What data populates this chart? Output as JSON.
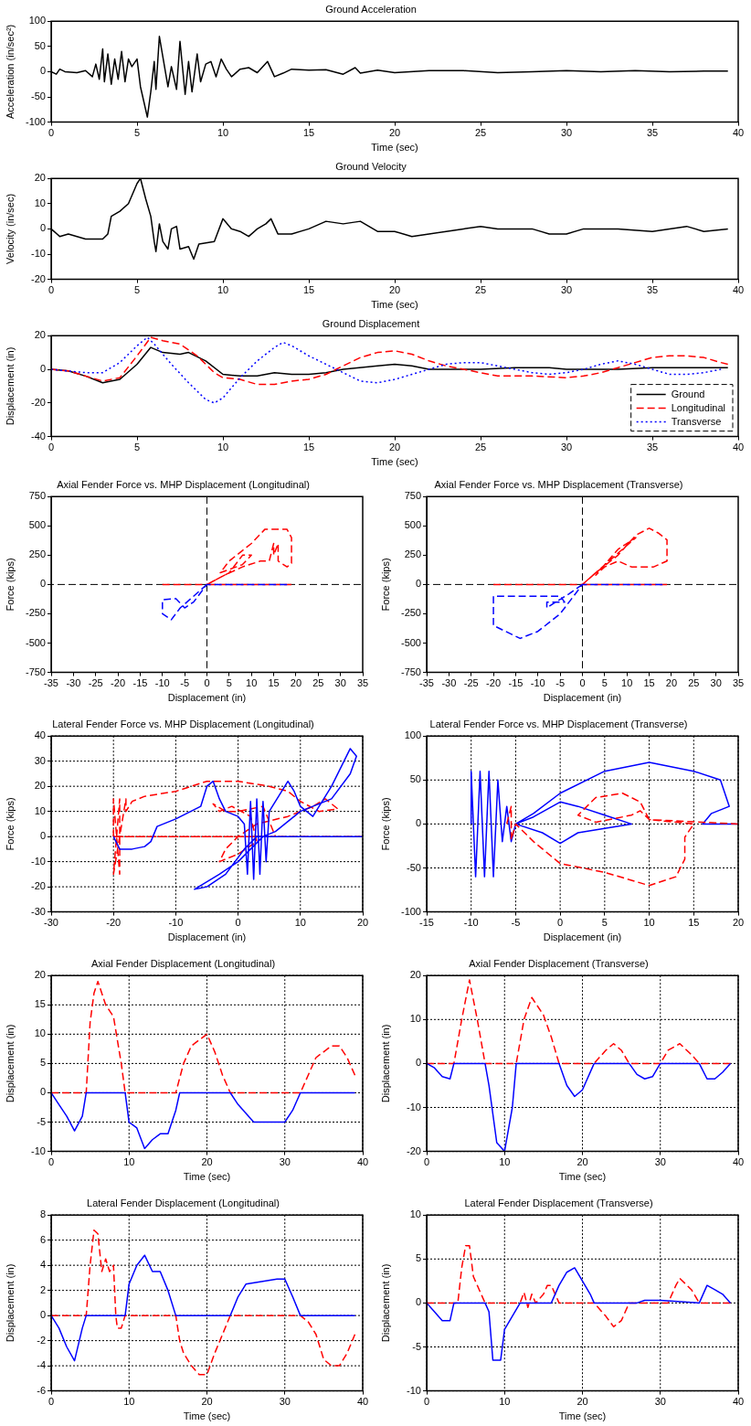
{
  "chart_data": [
    {
      "type": "line",
      "title": "Ground Acceleration",
      "xlabel": "Time (sec)",
      "ylabel": "Acceleration (in/sec²)",
      "xlim": [
        0,
        40
      ],
      "xticks": [
        0,
        5,
        10,
        15,
        20,
        25,
        30,
        35,
        40
      ],
      "ylim": [
        -100,
        100
      ],
      "yticks": [
        -100,
        -50,
        0,
        50,
        100
      ],
      "grid": false,
      "x": [
        0,
        0.3,
        0.5,
        0.8,
        1.5,
        2,
        2.4,
        2.6,
        2.8,
        3.0,
        3.1,
        3.3,
        3.5,
        3.7,
        3.9,
        4.1,
        4.3,
        4.5,
        4.7,
        5.0,
        5.2,
        5.4,
        5.6,
        5.8,
        6.0,
        6.1,
        6.3,
        6.5,
        6.8,
        7.0,
        7.3,
        7.5,
        7.8,
        8.0,
        8.2,
        8.5,
        8.7,
        9.0,
        9.3,
        9.6,
        9.9,
        10.2,
        10.5,
        11,
        11.5,
        12,
        12.6,
        13,
        13.5,
        14,
        15,
        16,
        17,
        17.7,
        18,
        19,
        20,
        22,
        24,
        26,
        28,
        30,
        32,
        34,
        36,
        38,
        39.4
      ],
      "series": [
        {
          "color": "#000000",
          "values": [
            0,
            -5,
            5,
            0,
            -2,
            2,
            -10,
            15,
            -15,
            45,
            -20,
            35,
            -25,
            25,
            -15,
            40,
            -20,
            25,
            10,
            25,
            -30,
            -60,
            -90,
            -40,
            20,
            -35,
            70,
            30,
            -30,
            10,
            -35,
            60,
            -45,
            20,
            -40,
            35,
            -20,
            15,
            20,
            -10,
            25,
            5,
            -10,
            5,
            8,
            -2,
            20,
            -10,
            -3,
            5,
            3,
            4,
            -5,
            8,
            -3,
            3,
            -2,
            2,
            2,
            -2,
            0,
            2,
            0,
            2,
            0,
            1,
            1
          ]
        }
      ]
    },
    {
      "type": "line",
      "title": "Ground Velocity",
      "xlabel": "Time (sec)",
      "ylabel": "Velocity (in/sec)",
      "xlim": [
        0,
        40
      ],
      "xticks": [
        0,
        5,
        10,
        15,
        20,
        25,
        30,
        35,
        40
      ],
      "ylim": [
        -20,
        20
      ],
      "yticks": [
        -20,
        -10,
        0,
        10,
        20
      ],
      "grid": false,
      "x": [
        0,
        0.5,
        1,
        2,
        3,
        3.3,
        3.5,
        4,
        4.5,
        5,
        5.2,
        5.5,
        5.8,
        6,
        6.1,
        6.3,
        6.5,
        6.8,
        7,
        7.3,
        7.5,
        8,
        8.3,
        8.6,
        9.5,
        10,
        10.5,
        11,
        11.5,
        12,
        12.5,
        12.8,
        13.2,
        14,
        15,
        16,
        17,
        18,
        19,
        20,
        21,
        22,
        23,
        24,
        25,
        26,
        28,
        29,
        30,
        31,
        33,
        35,
        36,
        37,
        38,
        39.4
      ],
      "series": [
        {
          "color": "#000000",
          "values": [
            0,
            -3,
            -2,
            -4,
            -4,
            -2,
            5,
            7,
            10,
            18,
            20,
            12,
            5,
            -5,
            -9,
            2,
            -5,
            -8,
            0,
            1,
            -8,
            -7,
            -12,
            -6,
            -5,
            4,
            0,
            -1,
            -3,
            0,
            2,
            4,
            -2,
            -2,
            0,
            3,
            2,
            3,
            -1,
            -1,
            -3,
            -2,
            -1,
            0,
            1,
            0,
            0,
            -2,
            -2,
            0,
            0,
            -1,
            0,
            1,
            -1,
            0
          ]
        }
      ]
    },
    {
      "type": "line",
      "title": "Ground Displacement",
      "xlabel": "Time (sec)",
      "ylabel": "Displacement (in)",
      "xlim": [
        0,
        40
      ],
      "xticks": [
        0,
        5,
        10,
        15,
        20,
        25,
        30,
        35,
        40
      ],
      "ylim": [
        -40,
        20
      ],
      "yticks": [
        -40,
        -20,
        0,
        20
      ],
      "grid": false,
      "legend": "bottom right",
      "series": [
        {
          "name": "Ground",
          "color": "#000000",
          "line_style": "solid",
          "x": [
            0,
            1,
            2,
            3,
            4,
            5,
            5.8,
            6.5,
            7.5,
            8,
            9,
            10,
            11,
            12,
            13,
            14,
            15,
            16,
            17,
            19,
            20,
            21,
            22,
            25,
            27,
            29,
            30,
            33,
            35,
            39.4
          ],
          "values": [
            0,
            -1,
            -4,
            -8,
            -6,
            3,
            13,
            10,
            9,
            10,
            5,
            -3,
            -4,
            -4,
            -2,
            -3,
            -3,
            -2,
            0,
            2,
            3,
            2,
            0,
            0,
            1,
            1,
            0,
            0,
            1,
            1
          ]
        },
        {
          "name": "Longitudinal",
          "color": "#ff0000",
          "line_style": "dashed",
          "x": [
            0,
            1,
            2,
            3,
            4,
            5,
            5.8,
            6.5,
            7.5,
            8.5,
            9.5,
            10,
            11,
            12,
            13,
            14,
            15,
            16,
            17,
            18,
            19,
            20,
            21,
            22,
            23,
            25,
            26,
            28,
            30,
            31,
            32,
            33,
            34,
            35,
            36,
            37,
            38,
            39,
            39.4
          ],
          "values": [
            0,
            -1,
            -4,
            -7,
            -5,
            8,
            19,
            17,
            15,
            8,
            -2,
            -5,
            -6,
            -9,
            -9,
            -7,
            -6,
            -3,
            2,
            7,
            10,
            11,
            9,
            5,
            2,
            -2,
            -4,
            -4,
            -5,
            -4,
            -2,
            1,
            4,
            7,
            8,
            8,
            7,
            4,
            3
          ]
        },
        {
          "name": "Transverse",
          "color": "#0000ff",
          "line_style": "dotted",
          "x": [
            0,
            1,
            2,
            3,
            4,
            5,
            5.6,
            6,
            7,
            8,
            9,
            9.5,
            10,
            11,
            12,
            13,
            13.5,
            14,
            15,
            16,
            17,
            18,
            19,
            20,
            21,
            22,
            23,
            24,
            25,
            26,
            27,
            28,
            29,
            30,
            31,
            32,
            33,
            34,
            35,
            36,
            37,
            38,
            39
          ],
          "values": [
            0,
            -1,
            -2,
            -2,
            4,
            14,
            19,
            15,
            3,
            -8,
            -18,
            -20,
            -17,
            -5,
            5,
            13,
            16,
            14,
            8,
            3,
            -2,
            -7,
            -8,
            -6,
            -3,
            0,
            3,
            4,
            4,
            2,
            0,
            -2,
            -3,
            -2,
            0,
            3,
            5,
            3,
            0,
            -3,
            -3,
            -2,
            0
          ]
        }
      ]
    },
    {
      "type": "line",
      "title": "Axial Fender Force vs. MHP Displacement (Longitudinal)",
      "xlabel": "Displacement (in)",
      "ylabel": "Force (kips)",
      "xlim": [
        -35,
        35
      ],
      "xticks": [
        -35,
        -30,
        -25,
        -20,
        -15,
        -10,
        -5,
        0,
        5,
        10,
        15,
        20,
        25,
        30,
        35
      ],
      "ylim": [
        -750,
        750
      ],
      "yticks": [
        -750,
        -500,
        -250,
        0,
        250,
        500,
        750
      ],
      "grid": false,
      "ref_lines": [
        {
          "axis": "x",
          "value": 0,
          "color": "#000000",
          "line_style": "dashed"
        },
        {
          "axis": "y",
          "value": 0,
          "color": "#000000",
          "line_style": "dashed"
        }
      ],
      "series": [
        {
          "color": "#ff0000",
          "line_style": "dashed",
          "x": [
            -10,
            0,
            5,
            8,
            10,
            8,
            3,
            5,
            10,
            13,
            18,
            19,
            19,
            18,
            16,
            16,
            15,
            15,
            14,
            12,
            8,
            4,
            0,
            19
          ],
          "values": [
            0,
            0,
            100,
            250,
            250,
            170,
            100,
            200,
            350,
            470,
            470,
            400,
            180,
            150,
            200,
            350,
            250,
            350,
            200,
            200,
            150,
            80,
            0,
            0
          ]
        },
        {
          "color": "#0000ff",
          "line_style": "dashed",
          "x": [
            0,
            -3,
            -6,
            -8,
            -10,
            -10,
            -7,
            -5,
            -3,
            -1,
            0,
            18
          ],
          "values": [
            0,
            -100,
            -200,
            -300,
            -250,
            -130,
            -120,
            -200,
            -150,
            -50,
            0,
            0
          ]
        }
      ]
    },
    {
      "type": "line",
      "title": "Axial Fender Force vs. MHP Displacement (Transverse)",
      "xlabel": "Displacement (in)",
      "ylabel": "Force (kips)",
      "xlim": [
        -35,
        35
      ],
      "xticks": [
        -35,
        -30,
        -25,
        -20,
        -15,
        -10,
        -5,
        0,
        5,
        10,
        15,
        20,
        25,
        30,
        35
      ],
      "ylim": [
        -750,
        750
      ],
      "yticks": [
        -750,
        -500,
        -250,
        0,
        250,
        500,
        750
      ],
      "grid": false,
      "ref_lines": [
        {
          "axis": "x",
          "value": 0,
          "color": "#000000",
          "line_style": "dashed"
        },
        {
          "axis": "y",
          "value": 0,
          "color": "#000000",
          "line_style": "dashed"
        }
      ],
      "series": [
        {
          "color": "#ff0000",
          "line_style": "dashed",
          "x": [
            -20,
            0,
            3,
            8,
            12,
            15,
            17,
            19,
            19,
            16,
            11,
            8,
            5,
            3,
            8,
            12,
            6,
            0,
            19
          ],
          "values": [
            0,
            0,
            100,
            250,
            420,
            480,
            440,
            380,
            200,
            150,
            150,
            200,
            150,
            80,
            300,
            400,
            200,
            0,
            0
          ]
        },
        {
          "color": "#0000ff",
          "line_style": "dashed",
          "x": [
            0,
            -3,
            -6,
            -8,
            -8,
            -4,
            -5,
            -10,
            -20,
            -20,
            -14,
            -10,
            -5,
            -2,
            0,
            18
          ],
          "values": [
            0,
            -80,
            -150,
            -200,
            -150,
            -150,
            -100,
            -100,
            -100,
            -350,
            -460,
            -400,
            -250,
            -100,
            0,
            0
          ]
        }
      ]
    },
    {
      "type": "line",
      "title": "Lateral Fender Force vs. MHP Displacement (Longitudinal)",
      "xlabel": "Displacement (in)",
      "ylabel": "Force (kips)",
      "xlim": [
        -30,
        20
      ],
      "xticks": [
        -30,
        -20,
        -10,
        0,
        10,
        20
      ],
      "ylim": [
        -30,
        40
      ],
      "yticks": [
        -30,
        -20,
        -10,
        0,
        10,
        20,
        30,
        40
      ],
      "grid": true,
      "series": [
        {
          "color": "#ff0000",
          "line_style": "dashed",
          "x": [
            -20,
            -20,
            -19,
            -19,
            -20,
            -18,
            -18,
            -17,
            -15,
            -10,
            -5,
            0,
            5,
            8,
            10,
            13,
            16,
            14,
            12,
            8,
            3,
            0,
            -2,
            -3,
            0,
            3,
            2,
            -1,
            -3,
            -4,
            -2,
            0,
            4,
            6,
            -5,
            -20,
            20
          ],
          "values": [
            0,
            15,
            -15,
            15,
            -15,
            15,
            10,
            14,
            16,
            18,
            22,
            22,
            20,
            18,
            14,
            10,
            11,
            15,
            12,
            8,
            5,
            0,
            -5,
            -10,
            -7,
            -2,
            8,
            12,
            10,
            13,
            10,
            10,
            12,
            0,
            0,
            0,
            0
          ]
        },
        {
          "color": "#0000ff",
          "x": [
            -20,
            -19,
            -17,
            -15,
            -14,
            -13,
            -12,
            -10,
            -6,
            -5,
            -4,
            -3,
            -2,
            0,
            1,
            1.5,
            2,
            2.5,
            3,
            3.5,
            4,
            4.5,
            5,
            6,
            8,
            9,
            10,
            12,
            15,
            18,
            19,
            18,
            15,
            10,
            6,
            4,
            2,
            0,
            -3,
            -7,
            -5,
            -2,
            1,
            3,
            20
          ],
          "values": [
            0,
            -5,
            -5,
            -4,
            -2,
            4,
            5,
            7,
            12,
            20,
            22,
            15,
            10,
            8,
            5,
            -15,
            14,
            -17,
            15,
            -15,
            14,
            -10,
            10,
            14,
            22,
            18,
            12,
            8,
            20,
            35,
            32,
            25,
            15,
            10,
            2,
            0,
            -5,
            -10,
            -15,
            -21,
            -20,
            -15,
            -5,
            0,
            0
          ]
        }
      ]
    },
    {
      "type": "line",
      "title": "Lateral Fender Force vs. MHP Displacement (Transverse)",
      "xlabel": "Displacement (in)",
      "ylabel": "Force (kips)",
      "xlim": [
        -15,
        20
      ],
      "xticks": [
        -15,
        -10,
        -5,
        0,
        5,
        10,
        15,
        20
      ],
      "ylim": [
        -100,
        100
      ],
      "yticks": [
        -100,
        -50,
        0,
        50,
        100
      ],
      "grid": true,
      "series": [
        {
          "color": "#0000ff",
          "x": [
            -10,
            -10,
            -9.5,
            -9,
            -8.5,
            -8,
            -7.5,
            -7,
            -6.5,
            -6,
            -5.5,
            -5,
            -3,
            0,
            2,
            5,
            8,
            5,
            2,
            0,
            -2,
            -5,
            -3,
            0,
            5,
            10,
            15,
            18,
            19,
            17,
            16,
            20
          ],
          "values": [
            0,
            60,
            -60,
            60,
            -60,
            60,
            -60,
            50,
            -20,
            20,
            -20,
            0,
            8,
            25,
            20,
            10,
            0,
            -5,
            -10,
            -22,
            -10,
            0,
            12,
            35,
            60,
            70,
            60,
            50,
            20,
            12,
            0,
            0
          ]
        },
        {
          "color": "#ff0000",
          "line_style": "dashed",
          "x": [
            -6,
            -5.5,
            -5.5,
            -5,
            -3,
            0,
            5,
            10,
            13,
            14,
            14,
            15,
            10,
            9,
            7,
            4,
            2,
            4,
            8,
            9,
            10,
            20
          ],
          "values": [
            0,
            20,
            -18,
            0,
            -20,
            -45,
            -55,
            -70,
            -60,
            -40,
            -15,
            0,
            5,
            25,
            35,
            30,
            10,
            2,
            10,
            15,
            5,
            0
          ]
        }
      ]
    },
    {
      "type": "line",
      "title": "Axial Fender Displacement (Longitudinal)",
      "xlabel": "Time (sec)",
      "ylabel": "Displacement (in)",
      "xlim": [
        0,
        40
      ],
      "xticks": [
        0,
        10,
        20,
        30,
        40
      ],
      "ylim": [
        -10,
        20
      ],
      "yticks": [
        -10,
        -5,
        0,
        5,
        10,
        15,
        20
      ],
      "grid": true,
      "series": [
        {
          "color": "#ff0000",
          "line_style": "dashed",
          "x": [
            0,
            4.5,
            5,
            5.5,
            6,
            7,
            8,
            9,
            9.5,
            16,
            17,
            18,
            19,
            20,
            21,
            22,
            23,
            32,
            33,
            34,
            35,
            36,
            37,
            38,
            39
          ],
          "values": [
            0,
            0,
            12,
            17,
            19,
            15,
            13,
            5,
            0,
            0,
            5,
            8,
            9,
            10,
            7,
            3,
            0,
            0,
            3,
            6,
            7,
            8,
            8,
            6,
            3
          ]
        },
        {
          "color": "#0000ff",
          "x": [
            0,
            1,
            2,
            3,
            4,
            4.5,
            9.5,
            10,
            11,
            12,
            13,
            14,
            15,
            16,
            16.5,
            23,
            24,
            26,
            30,
            31,
            32,
            39
          ],
          "values": [
            0,
            -2,
            -4,
            -6.5,
            -4,
            0,
            0,
            -5,
            -6,
            -9.5,
            -8,
            -7,
            -7,
            -3,
            0,
            0,
            -2,
            -5,
            -5,
            -3,
            0,
            0
          ]
        }
      ]
    },
    {
      "type": "line",
      "title": "Axial Fender Displacement (Transverse)",
      "xlabel": "Time (sec)",
      "ylabel": "Displacement (in)",
      "xlim": [
        0,
        40
      ],
      "xticks": [
        0,
        10,
        20,
        30,
        40
      ],
      "ylim": [
        -20,
        20
      ],
      "yticks": [
        -20,
        -10,
        0,
        10,
        20
      ],
      "grid": true,
      "series": [
        {
          "color": "#ff0000",
          "line_style": "dashed",
          "x": [
            0,
            3.5,
            4.5,
            5.5,
            6.5,
            7.5,
            11.5,
            12.5,
            13.5,
            15,
            16,
            17,
            21.5,
            23,
            24,
            25,
            26,
            30,
            31,
            32.5,
            34,
            35,
            39
          ],
          "values": [
            0,
            0,
            10,
            19,
            10,
            0,
            0,
            10,
            15,
            11,
            6,
            0,
            0,
            3,
            4.5,
            3,
            0,
            0,
            3,
            4.5,
            2,
            0,
            0
          ]
        },
        {
          "color": "#0000ff",
          "x": [
            0,
            1,
            2,
            3,
            3.5,
            7.5,
            8,
            9,
            10,
            11,
            11.5,
            17,
            18,
            19,
            20,
            21.5,
            26,
            27,
            28,
            29,
            30,
            35,
            36,
            37,
            38,
            39
          ],
          "values": [
            0,
            -1,
            -3,
            -3.5,
            0,
            0,
            -5,
            -18,
            -20,
            -10,
            0,
            0,
            -5,
            -7.5,
            -6,
            0,
            0,
            -2.5,
            -3.5,
            -3,
            0,
            0,
            -3.5,
            -3.5,
            -2,
            0
          ]
        }
      ]
    },
    {
      "type": "line",
      "title": "Lateral Fender Displacement (Longitudinal)",
      "xlabel": "Time (sec)",
      "ylabel": "Displacement (in)",
      "xlim": [
        0,
        40
      ],
      "xticks": [
        0,
        10,
        20,
        30,
        40
      ],
      "ylim": [
        -6,
        8
      ],
      "yticks": [
        -6,
        -4,
        -2,
        0,
        2,
        4,
        6,
        8
      ],
      "grid": true,
      "series": [
        {
          "color": "#ff0000",
          "line_style": "dashed",
          "x": [
            0,
            4.5,
            5,
            5.5,
            6,
            6.5,
            7,
            7.5,
            8,
            8.3,
            8.5,
            9,
            9.5,
            16,
            16.5,
            17,
            18,
            19,
            20,
            21,
            22,
            23,
            32,
            33,
            34,
            35,
            36,
            37,
            38,
            39
          ],
          "values": [
            0,
            0,
            4,
            6.8,
            6.5,
            3.5,
            4.5,
            3.5,
            4,
            0,
            -1,
            -1,
            0,
            0,
            -2,
            -3,
            -4,
            -4.7,
            -4.7,
            -3,
            -1.5,
            0,
            0,
            -0.5,
            -1.5,
            -3.5,
            -4,
            -4,
            -3,
            -1.5
          ]
        },
        {
          "color": "#0000ff",
          "x": [
            0,
            1,
            2,
            3,
            4,
            4.5,
            9.5,
            10,
            11,
            12,
            13,
            14,
            15,
            16,
            23,
            24,
            25,
            27,
            29,
            30,
            31,
            32,
            39
          ],
          "values": [
            0,
            -1,
            -2.5,
            -3.6,
            -1,
            0,
            0,
            2.5,
            4,
            4.8,
            3.5,
            3.5,
            2,
            0,
            0,
            1.5,
            2.5,
            2.7,
            2.9,
            2.9,
            1.5,
            0,
            0
          ]
        }
      ]
    },
    {
      "type": "line",
      "title": "Lateral Fender Displacement (Transverse)",
      "xlabel": "Time (sec)",
      "ylabel": "Displacement (in)",
      "xlim": [
        0,
        40
      ],
      "xticks": [
        0,
        10,
        20,
        30,
        40
      ],
      "ylim": [
        -10,
        10
      ],
      "yticks": [
        -10,
        -5,
        0,
        5,
        10
      ],
      "grid": true,
      "series": [
        {
          "color": "#ff0000",
          "line_style": "dashed",
          "x": [
            0,
            4,
            4.5,
            5,
            5.5,
            6,
            7,
            7.5,
            12,
            12.5,
            13,
            13.5,
            14,
            15,
            15.5,
            16,
            17,
            21.5,
            23,
            24,
            25,
            26,
            31,
            32,
            32.5,
            34,
            35,
            39
          ],
          "values": [
            0,
            0,
            4,
            6.5,
            6.5,
            3,
            1,
            0,
            0,
            1.2,
            -0.5,
            1,
            0,
            1,
            2,
            2,
            0,
            0,
            -1.5,
            -2.7,
            -2,
            0,
            0,
            2,
            2.8,
            1.5,
            0,
            0
          ]
        },
        {
          "color": "#0000ff",
          "x": [
            0,
            1,
            2,
            3,
            3.5,
            7.5,
            8,
            8.5,
            9.5,
            10,
            11,
            12,
            16,
            17,
            18,
            19,
            20,
            21,
            21.5,
            27,
            28,
            30,
            35,
            36,
            37,
            38,
            39
          ],
          "values": [
            0,
            -1,
            -2,
            -2,
            0,
            0,
            -1,
            -6.5,
            -6.5,
            -3,
            -1.5,
            0,
            0,
            2,
            3.5,
            4,
            2.5,
            1,
            0,
            0,
            0.3,
            0.3,
            0,
            2,
            1.5,
            1,
            0
          ]
        }
      ]
    }
  ]
}
